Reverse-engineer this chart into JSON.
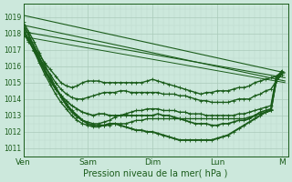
{
  "bg_color": "#cce8dc",
  "grid_color_major": "#aacaba",
  "grid_color_minor": "#bcd8cc",
  "line_color": "#1a5c1a",
  "ylim": [
    1010.5,
    1019.8
  ],
  "xlim": [
    0,
    4.1
  ],
  "ylabel_ticks": [
    1011,
    1012,
    1013,
    1014,
    1015,
    1016,
    1017,
    1018,
    1019
  ],
  "xlabel": "Pression niveau de la mer( hPa )",
  "day_labels": [
    "Ven",
    "Sam",
    "Dim",
    "Lun",
    "M"
  ],
  "day_positions": [
    0,
    1,
    2,
    3,
    4
  ],
  "straight_lines": [
    {
      "x0": 0.0,
      "y0": 1019.1,
      "x1": 4.05,
      "y1": 1015.6,
      "lw": 0.8
    },
    {
      "x0": 0.0,
      "y0": 1018.5,
      "x1": 4.05,
      "y1": 1015.1,
      "lw": 0.8
    },
    {
      "x0": 0.0,
      "y0": 1018.1,
      "x1": 4.05,
      "y1": 1015.3,
      "lw": 0.8
    },
    {
      "x0": 0.0,
      "y0": 1017.8,
      "x1": 4.05,
      "y1": 1015.0,
      "lw": 0.7
    }
  ],
  "wavy_series": [
    {
      "x": [
        0.0,
        0.083,
        0.167,
        0.25,
        0.333,
        0.417,
        0.5,
        0.583,
        0.667,
        0.75,
        0.833,
        0.917,
        1.0,
        1.083,
        1.167,
        1.25,
        1.333,
        1.417,
        1.5,
        1.583,
        1.667,
        1.75,
        1.833,
        1.917,
        2.0,
        2.083,
        2.167,
        2.25,
        2.333,
        2.417,
        2.5,
        2.583,
        2.667,
        2.75,
        2.833,
        2.917,
        3.0,
        3.083,
        3.167,
        3.25,
        3.333,
        3.417,
        3.5,
        3.583,
        3.667,
        3.75,
        3.833,
        3.917,
        4.0
      ],
      "y": [
        1018.1,
        1017.7,
        1017.2,
        1016.7,
        1016.2,
        1015.8,
        1015.4,
        1015.0,
        1014.8,
        1014.7,
        1014.8,
        1015.0,
        1015.1,
        1015.1,
        1015.1,
        1015.0,
        1015.0,
        1015.0,
        1015.0,
        1015.0,
        1015.0,
        1015.0,
        1015.0,
        1015.1,
        1015.2,
        1015.1,
        1015.0,
        1014.9,
        1014.8,
        1014.7,
        1014.6,
        1014.5,
        1014.4,
        1014.3,
        1014.4,
        1014.4,
        1014.5,
        1014.5,
        1014.5,
        1014.6,
        1014.7,
        1014.7,
        1014.8,
        1015.0,
        1015.1,
        1015.2,
        1015.3,
        1015.4,
        1015.6
      ],
      "lw": 1.0,
      "marker": true,
      "ms": 2.5
    },
    {
      "x": [
        0.0,
        0.083,
        0.167,
        0.25,
        0.333,
        0.417,
        0.5,
        0.583,
        0.667,
        0.75,
        0.833,
        0.917,
        1.0,
        1.083,
        1.167,
        1.25,
        1.333,
        1.417,
        1.5,
        1.583,
        1.667,
        1.75,
        1.833,
        1.917,
        2.0,
        2.083,
        2.167,
        2.25,
        2.333,
        2.417,
        2.5,
        2.583,
        2.667,
        2.75,
        2.833,
        2.917,
        3.0,
        3.083,
        3.167,
        3.25,
        3.333,
        3.417,
        3.5,
        3.583,
        3.667,
        3.75,
        3.833,
        3.917,
        4.0
      ],
      "y": [
        1018.0,
        1017.5,
        1017.0,
        1016.5,
        1016.0,
        1015.5,
        1015.0,
        1014.6,
        1014.3,
        1014.1,
        1014.0,
        1014.0,
        1014.1,
        1014.2,
        1014.3,
        1014.4,
        1014.4,
        1014.4,
        1014.5,
        1014.5,
        1014.4,
        1014.4,
        1014.4,
        1014.4,
        1014.4,
        1014.4,
        1014.3,
        1014.3,
        1014.3,
        1014.2,
        1014.2,
        1014.1,
        1014.0,
        1013.9,
        1013.9,
        1013.8,
        1013.8,
        1013.8,
        1013.8,
        1013.9,
        1014.0,
        1014.0,
        1014.0,
        1014.2,
        1014.3,
        1014.5,
        1014.6,
        1015.1,
        1015.5
      ],
      "lw": 1.0,
      "marker": true,
      "ms": 2.5
    },
    {
      "x": [
        0.0,
        0.083,
        0.167,
        0.25,
        0.333,
        0.417,
        0.5,
        0.583,
        0.667,
        0.75,
        0.833,
        0.917,
        1.0,
        1.083,
        1.167,
        1.25,
        1.333,
        1.417,
        1.5,
        1.583,
        1.667,
        1.75,
        1.833,
        1.917,
        2.0,
        2.083,
        2.167,
        2.25,
        2.333,
        2.417,
        2.5,
        2.583,
        2.667,
        2.75,
        2.833,
        2.917,
        3.0,
        3.083,
        3.167,
        3.25,
        3.333,
        3.417,
        3.5,
        3.583,
        3.667,
        3.75,
        3.833,
        3.917,
        4.0
      ],
      "y": [
        1018.2,
        1017.6,
        1017.0,
        1016.3,
        1015.7,
        1015.1,
        1014.6,
        1014.2,
        1013.9,
        1013.6,
        1013.4,
        1013.2,
        1013.1,
        1013.0,
        1013.1,
        1013.1,
        1013.0,
        1013.0,
        1013.0,
        1013.0,
        1013.0,
        1013.0,
        1013.0,
        1013.0,
        1013.0,
        1013.1,
        1013.0,
        1013.0,
        1012.9,
        1012.8,
        1012.7,
        1012.6,
        1012.5,
        1012.5,
        1012.5,
        1012.4,
        1012.4,
        1012.5,
        1012.5,
        1012.6,
        1012.7,
        1012.7,
        1012.8,
        1013.0,
        1013.2,
        1013.3,
        1013.4,
        1015.2,
        1015.6
      ],
      "lw": 1.2,
      "marker": true,
      "ms": 2.8
    },
    {
      "x": [
        0.0,
        0.083,
        0.167,
        0.25,
        0.333,
        0.417,
        0.5,
        0.583,
        0.667,
        0.75,
        0.833,
        0.917,
        1.0,
        1.083,
        1.167,
        1.25,
        1.333,
        1.417,
        1.5,
        1.583,
        1.667,
        1.75,
        1.833,
        1.917,
        2.0,
        2.083,
        2.167,
        2.25,
        2.333,
        2.417,
        2.5,
        2.583,
        2.667,
        2.75,
        2.833,
        2.917,
        3.0,
        3.083,
        3.167,
        3.25,
        3.333,
        3.417,
        3.5,
        3.583,
        3.667,
        3.75,
        3.833,
        3.917,
        4.0
      ],
      "y": [
        1018.5,
        1017.9,
        1017.2,
        1016.5,
        1015.8,
        1015.2,
        1014.7,
        1014.2,
        1013.7,
        1013.3,
        1013.0,
        1012.7,
        1012.5,
        1012.4,
        1012.4,
        1012.4,
        1012.5,
        1012.5,
        1012.4,
        1012.3,
        1012.2,
        1012.1,
        1012.1,
        1012.0,
        1012.0,
        1011.9,
        1011.8,
        1011.7,
        1011.6,
        1011.5,
        1011.5,
        1011.5,
        1011.5,
        1011.5,
        1011.5,
        1011.5,
        1011.6,
        1011.7,
        1011.8,
        1012.0,
        1012.2,
        1012.4,
        1012.6,
        1012.8,
        1013.0,
        1013.2,
        1013.3,
        1015.3,
        1015.7
      ],
      "lw": 1.4,
      "marker": true,
      "ms": 3.0
    },
    {
      "x": [
        0.0,
        0.083,
        0.167,
        0.25,
        0.333,
        0.417,
        0.5,
        0.583,
        0.667,
        0.75,
        0.833,
        0.917,
        1.0,
        1.083,
        1.167,
        1.25,
        1.333,
        1.417,
        1.5,
        1.583,
        1.667,
        1.75,
        1.833,
        1.917,
        2.0,
        2.083,
        2.167,
        2.25,
        2.333,
        2.417,
        2.5,
        2.583,
        2.667,
        2.75,
        2.833,
        2.917,
        3.0,
        3.083,
        3.167,
        3.25,
        3.333,
        3.417,
        3.5,
        3.583,
        3.667,
        3.75,
        3.833,
        3.917,
        4.0
      ],
      "y": [
        1018.3,
        1017.6,
        1016.9,
        1016.2,
        1015.5,
        1014.9,
        1014.3,
        1013.8,
        1013.4,
        1013.0,
        1012.7,
        1012.5,
        1012.4,
        1012.3,
        1012.3,
        1012.4,
        1012.4,
        1012.5,
        1012.5,
        1012.5,
        1012.6,
        1012.7,
        1012.7,
        1012.8,
        1012.8,
        1012.8,
        1012.8,
        1012.8,
        1012.8,
        1012.8,
        1012.8,
        1012.8,
        1012.8,
        1012.8,
        1012.8,
        1012.8,
        1012.8,
        1012.8,
        1012.8,
        1012.8,
        1012.8,
        1012.8,
        1012.9,
        1013.0,
        1013.1,
        1013.2,
        1013.3,
        1015.1,
        1015.5
      ],
      "lw": 1.0,
      "marker": true,
      "ms": 2.5
    },
    {
      "x": [
        0.0,
        0.083,
        0.167,
        0.25,
        0.333,
        0.417,
        0.5,
        0.583,
        0.667,
        0.75,
        0.833,
        0.917,
        1.0,
        1.083,
        1.167,
        1.25,
        1.333,
        1.417,
        1.5,
        1.583,
        1.667,
        1.75,
        1.833,
        1.917,
        2.0,
        2.083,
        2.167,
        2.25,
        2.333,
        2.417,
        2.5,
        2.583,
        2.667,
        2.75,
        2.833,
        2.917,
        3.0,
        3.083,
        3.167,
        3.25,
        3.333,
        3.417,
        3.5,
        3.583,
        3.667,
        3.75,
        3.833,
        3.917,
        4.0
      ],
      "y": [
        1018.7,
        1018.1,
        1017.5,
        1016.8,
        1016.1,
        1015.4,
        1014.7,
        1014.1,
        1013.6,
        1013.2,
        1012.9,
        1012.7,
        1012.6,
        1012.5,
        1012.5,
        1012.6,
        1012.7,
        1012.9,
        1013.0,
        1013.1,
        1013.2,
        1013.3,
        1013.3,
        1013.4,
        1013.4,
        1013.4,
        1013.3,
        1013.3,
        1013.3,
        1013.2,
        1013.2,
        1013.1,
        1013.1,
        1013.1,
        1013.0,
        1013.0,
        1013.0,
        1013.0,
        1013.0,
        1013.0,
        1013.1,
        1013.1,
        1013.2,
        1013.3,
        1013.4,
        1013.5,
        1013.6,
        1015.4,
        1015.6
      ],
      "lw": 1.0,
      "marker": true,
      "ms": 2.5
    }
  ]
}
